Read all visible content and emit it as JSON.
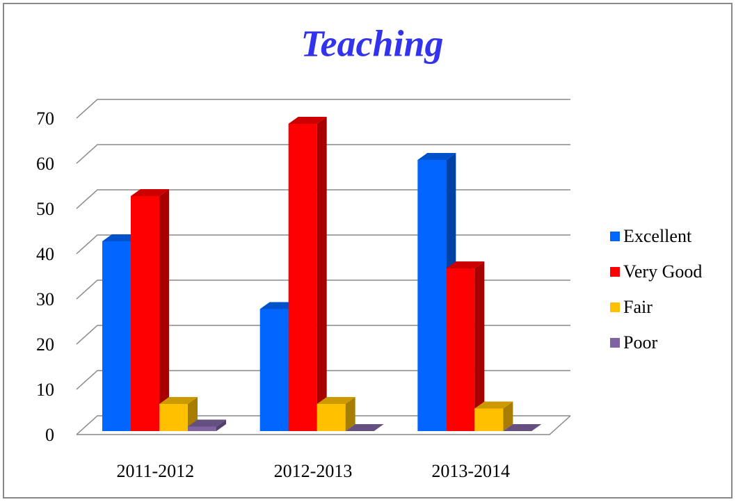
{
  "chart_data": {
    "type": "bar3d",
    "title": "Teaching",
    "categories": [
      "2011-2012",
      "2012-2013",
      "2013-2014"
    ],
    "series": [
      {
        "name": "Excellent",
        "color": "#0066ff",
        "values": [
          42,
          27,
          60
        ]
      },
      {
        "name": "Very Good",
        "color": "#ff0000",
        "values": [
          52,
          68,
          36
        ]
      },
      {
        "name": "Fair",
        "color": "#ffc000",
        "values": [
          6,
          6,
          5
        ]
      },
      {
        "name": "Poor",
        "color": "#8064a2",
        "values": [
          1,
          0,
          0
        ]
      }
    ],
    "ylim": [
      0,
      70
    ],
    "yticks": [
      0,
      10,
      20,
      30,
      40,
      50,
      60,
      70
    ],
    "grid": true,
    "legend": "right"
  }
}
